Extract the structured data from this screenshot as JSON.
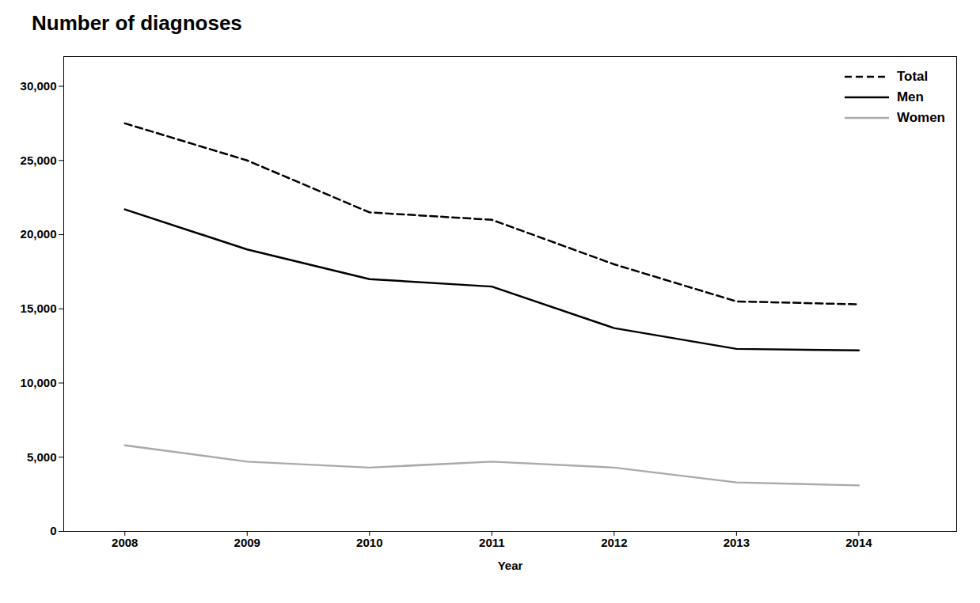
{
  "chart_data": {
    "type": "line",
    "title": "Number of diagnoses",
    "xlabel": "Year",
    "x": [
      2008,
      2009,
      2010,
      2011,
      2012,
      2013,
      2014
    ],
    "xlim": [
      2007.5,
      2014.8
    ],
    "xticks": [
      2008,
      2009,
      2010,
      2011,
      2012,
      2013,
      2014
    ],
    "ylim": [
      0,
      32000
    ],
    "yticks": [
      0,
      {
        "value": 5000,
        "label": "5,000"
      },
      {
        "value": 10000,
        "label": "10,000"
      },
      {
        "value": 15000,
        "label": "15,000"
      },
      {
        "value": 20000,
        "label": "20,000"
      },
      {
        "value": 25000,
        "label": "25,000"
      },
      {
        "value": 30000,
        "label": "30,000"
      }
    ],
    "series": [
      {
        "name": "Total",
        "color": "#000000",
        "line_style": "dashed",
        "values": [
          27500,
          25000,
          21500,
          21000,
          18000,
          15500,
          15300
        ]
      },
      {
        "name": "Men",
        "color": "#000000",
        "line_style": "solid",
        "values": [
          21700,
          19000,
          17000,
          16500,
          13700,
          12300,
          12200
        ]
      },
      {
        "name": "Women",
        "color": "#aaaaaa",
        "line_style": "solid",
        "values": [
          5800,
          4700,
          4300,
          4700,
          4300,
          3300,
          3100
        ]
      }
    ],
    "legend": "upper right",
    "grid": false
  }
}
